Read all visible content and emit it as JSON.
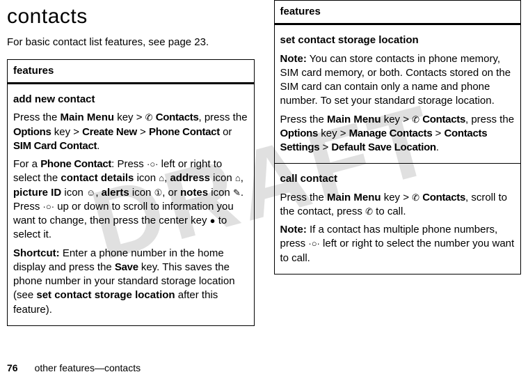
{
  "watermark": "DRAFT",
  "left": {
    "title": "contacts",
    "intro": "For basic contact list features, see page 23.",
    "header": "features",
    "cell": {
      "heading": "add new contact",
      "p1_a": "Press the ",
      "p1_mainmenu": "Main Menu",
      "p1_b": " key > ",
      "p1_icon_contacts": "✆",
      "p1_contacts": "Contacts",
      "p1_c": ", press the ",
      "p1_options": "Options",
      "p1_d": " key > ",
      "p1_createnew": "Create New",
      "p1_e": " > ",
      "p1_phonecontact": "Phone Contact",
      "p1_or": " or ",
      "p1_simcontact": "SIM Card Contact",
      "p1_period": ".",
      "p2_a": "For a ",
      "p2_phonecontact": "Phone Contact",
      "p2_b": ": Press ",
      "p2_navdot": "·○·",
      "p2_c": " left or right to select the ",
      "p2_contactdetails": "contact details",
      "p2_d": " icon ",
      "p2_icon_details": "⌂",
      "p2_e": ", ",
      "p2_address": "address",
      "p2_icon_address": "⌂",
      "p2_f": ", ",
      "p2_pictureid": "picture ID",
      "p2_icon_pic": "☺",
      "p2_g": ", ",
      "p2_alerts": "alerts",
      "p2_icon_alerts": "①",
      "p2_h": ", or ",
      "p2_notes": "notes",
      "p2_icon_notes": "✎",
      "p2_i": ". Press ",
      "p2_j": " up or down to scroll to information you want to change, then press the center key ",
      "p2_center": "●",
      "p2_k": " to select it.",
      "p3_shortcut": "Shortcut:",
      "p3_a": " Enter a phone number in the home display and press the ",
      "p3_save": "Save",
      "p3_b": " key. This saves the phone number in your standard storage location (see ",
      "p3_link": "set contact storage location",
      "p3_c": " after this feature)."
    }
  },
  "right": {
    "header": "features",
    "cell1": {
      "heading": "set contact storage location",
      "note_label": "Note:",
      "note_text": " You can store contacts in phone memory, SIM card memory, or both. Contacts stored on the SIM card can contain only a name and phone number. To set your standard storage location.",
      "p1_a": "Press the ",
      "p1_mainmenu": "Main Menu",
      "p1_b": " key > ",
      "p1_icon_contacts": "✆",
      "p1_contacts": "Contacts",
      "p1_c": ", press the ",
      "p1_options": "Options",
      "p1_d": " key > ",
      "p1_manage": "Manage Contacts",
      "p1_e": " > ",
      "p1_settings": "Contacts Settings",
      "p1_f": " > ",
      "p1_default": "Default Save Location",
      "p1_period": "."
    },
    "cell2": {
      "heading": "call contact",
      "p1_a": "Press the ",
      "p1_mainmenu": "Main Menu",
      "p1_b": " key > ",
      "p1_icon_contacts": "✆",
      "p1_contacts": "Contacts",
      "p1_c": ", scroll to the contact, press ",
      "p1_send": "✆",
      "p1_d": " to call.",
      "note_label": "Note:",
      "note_a": " If a contact has multiple phone numbers, press ",
      "nav": "·○·",
      "note_b": " left or right to select the number you want to call."
    }
  },
  "footer": {
    "page": "76",
    "text": "other features—contacts"
  }
}
